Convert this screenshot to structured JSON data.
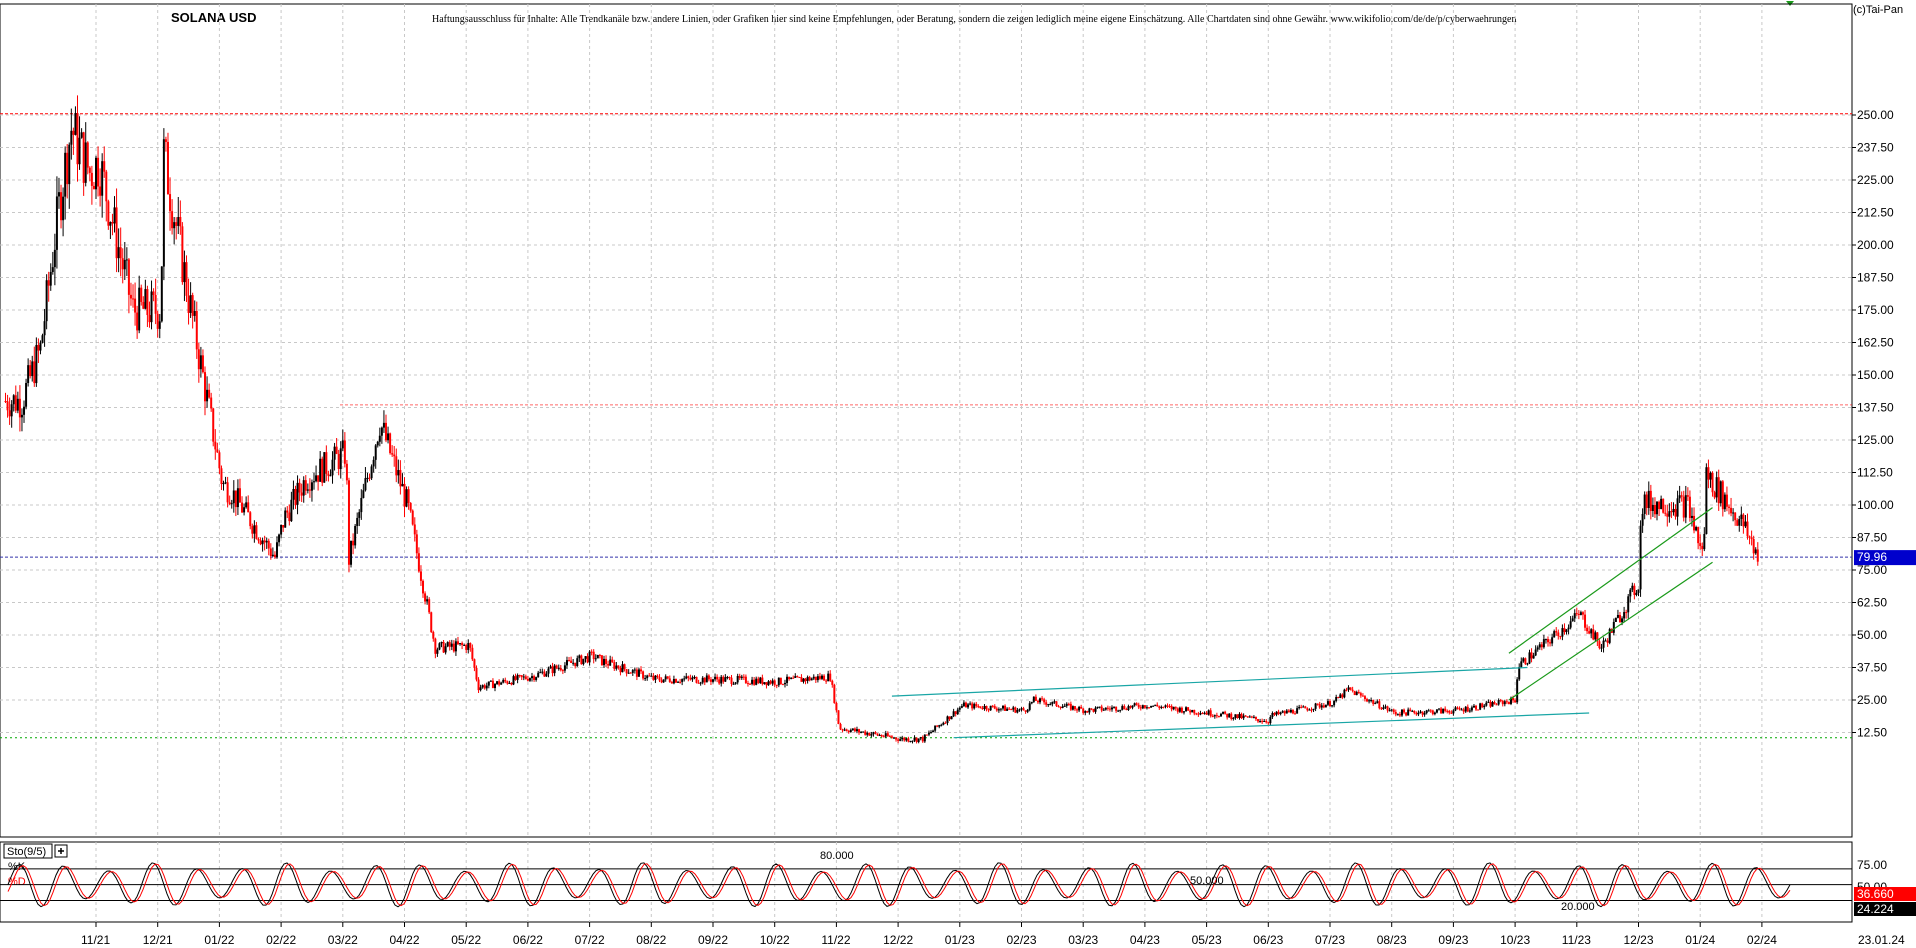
{
  "title": "SOLANA USD",
  "disclaimer": "Haftungsausschluss für Inhalte: Alle Trendkanäle bzw. andere Linien, oder Grafiken hier sind keine Empfehlungen, oder Beratung, sondern die zeigen lediglich meine eigene Einschätzung. Alle Chartdaten sind ohne Gewähr. www.wikifolio.com/de/de/p/cyberwaehrungen",
  "copyright": "(c)Tai-Pan",
  "colors": {
    "up": "#000000",
    "down": "#ff0000",
    "grid": "#c8c8c8",
    "channel_blue": "#1aa6a6",
    "channel_green": "#1a9a1a",
    "price_badge": "#0000cc",
    "stoch_k": "#000000",
    "stoch_d": "#ff0000",
    "hline_red": "#ff0000",
    "hline_price": "#3333aa",
    "hline_green": "#00aa00"
  },
  "chart_data": [
    {
      "type": "line",
      "title": "SOLANA USD",
      "x_ticks": [
        "11/21",
        "12/21",
        "01/22",
        "02/22",
        "03/22",
        "04/22",
        "05/22",
        "06/22",
        "07/22",
        "08/22",
        "09/22",
        "10/22",
        "11/22",
        "12/22",
        "01/23",
        "02/23",
        "03/23",
        "04/23",
        "05/23",
        "06/23",
        "07/23",
        "08/23",
        "09/23",
        "10/23",
        "11/23",
        "12/23",
        "01/24",
        "02/24"
      ],
      "y_ticks": [
        "250.00",
        "237.50",
        "225.00",
        "212.50",
        "200.00",
        "187.50",
        "175.00",
        "162.50",
        "150.00",
        "137.50",
        "125.00",
        "112.50",
        "100.00",
        "87.50",
        "75.00",
        "62.50",
        "50.00",
        "37.50",
        "25.00",
        "12.50"
      ],
      "ylim": [
        0,
        256
      ],
      "last_price": "79.96",
      "last_date": "23.01.24",
      "horizontal_levels": {
        "resistance_high": 250.5,
        "resistance_mid": 138.5,
        "last_price": 79.96,
        "support_low": 10.5
      },
      "series": [
        {
          "values_monthly_close": [
            [
              "11/21",
              232
            ],
            [
              "12/21",
              175
            ],
            [
              "01/22",
              108
            ],
            [
              "02/22",
              95
            ],
            [
              "03/22",
              120
            ],
            [
              "04/22",
              100
            ],
            [
              "05/22",
              46
            ],
            [
              "06/22",
              34
            ],
            [
              "07/22",
              42
            ],
            [
              "08/22",
              33
            ],
            [
              "09/22",
              33
            ],
            [
              "10/22",
              32
            ],
            [
              "11/22",
              14
            ],
            [
              "12/22",
              10
            ],
            [
              "01/23",
              23
            ],
            [
              "02/23",
              21
            ],
            [
              "03/23",
              21
            ],
            [
              "04/23",
              23
            ],
            [
              "05/23",
              20
            ],
            [
              "06/23",
              19
            ],
            [
              "07/23",
              24
            ],
            [
              "08/23",
              20
            ],
            [
              "09/23",
              21
            ],
            [
              "10/23",
              38
            ],
            [
              "11/23",
              58
            ],
            [
              "12/23",
              101
            ],
            [
              "01/24",
              80
            ]
          ]
        }
      ],
      "trend_channels": [
        {
          "color": "channel_blue",
          "upper": [
            [
              "12/22",
              26.5
            ],
            [
              "10/23",
              37.5
            ]
          ],
          "lower": [
            [
              "01/23",
              10.5
            ],
            [
              "11/23",
              20
            ]
          ]
        },
        {
          "color": "channel_green",
          "upper": [
            [
              "10/23",
              43
            ],
            [
              "01/24",
              99
            ]
          ],
          "lower": [
            [
              "10/23",
              25
            ],
            [
              "01/24",
              78
            ]
          ]
        }
      ]
    },
    {
      "type": "line",
      "title": "Sto(9/5)",
      "legend": [
        "%K",
        "%D"
      ],
      "y_ticks": [
        "75.00",
        "50.00"
      ],
      "ylim": [
        0,
        100
      ],
      "levels": [
        "80.000",
        "50.000",
        "20.000"
      ],
      "last_values": {
        "k": "36.660",
        "d": "24.224"
      },
      "oscillation_cycles": 40
    }
  ]
}
